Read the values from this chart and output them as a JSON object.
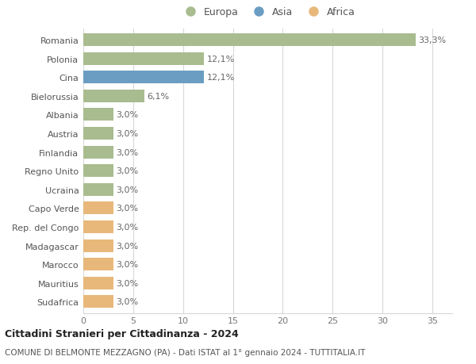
{
  "countries": [
    "Romania",
    "Polonia",
    "Cina",
    "Bielorussia",
    "Albania",
    "Austria",
    "Finlandia",
    "Regno Unito",
    "Ucraina",
    "Capo Verde",
    "Rep. del Congo",
    "Madagascar",
    "Marocco",
    "Mauritius",
    "Sudafrica"
  ],
  "values": [
    33.3,
    12.1,
    12.1,
    6.1,
    3.0,
    3.0,
    3.0,
    3.0,
    3.0,
    3.0,
    3.0,
    3.0,
    3.0,
    3.0,
    3.0
  ],
  "labels": [
    "33,3%",
    "12,1%",
    "12,1%",
    "6,1%",
    "3,0%",
    "3,0%",
    "3,0%",
    "3,0%",
    "3,0%",
    "3,0%",
    "3,0%",
    "3,0%",
    "3,0%",
    "3,0%",
    "3,0%"
  ],
  "continents": [
    "Europa",
    "Europa",
    "Asia",
    "Europa",
    "Europa",
    "Europa",
    "Europa",
    "Europa",
    "Europa",
    "Africa",
    "Africa",
    "Africa",
    "Africa",
    "Africa",
    "Africa"
  ],
  "colors": {
    "Europa": "#a8bc8f",
    "Asia": "#6b9dc2",
    "Africa": "#e8b87a"
  },
  "title1": "Cittadini Stranieri per Cittadinanza - 2024",
  "title2": "COMUNE DI BELMONTE MEZZAGNO (PA) - Dati ISTAT al 1° gennaio 2024 - TUTTITALIA.IT",
  "xlim": [
    0,
    37
  ],
  "xticks": [
    0,
    5,
    10,
    15,
    20,
    25,
    30,
    35
  ],
  "background_color": "#ffffff",
  "grid_color": "#d8d8d8",
  "bar_height": 0.68
}
